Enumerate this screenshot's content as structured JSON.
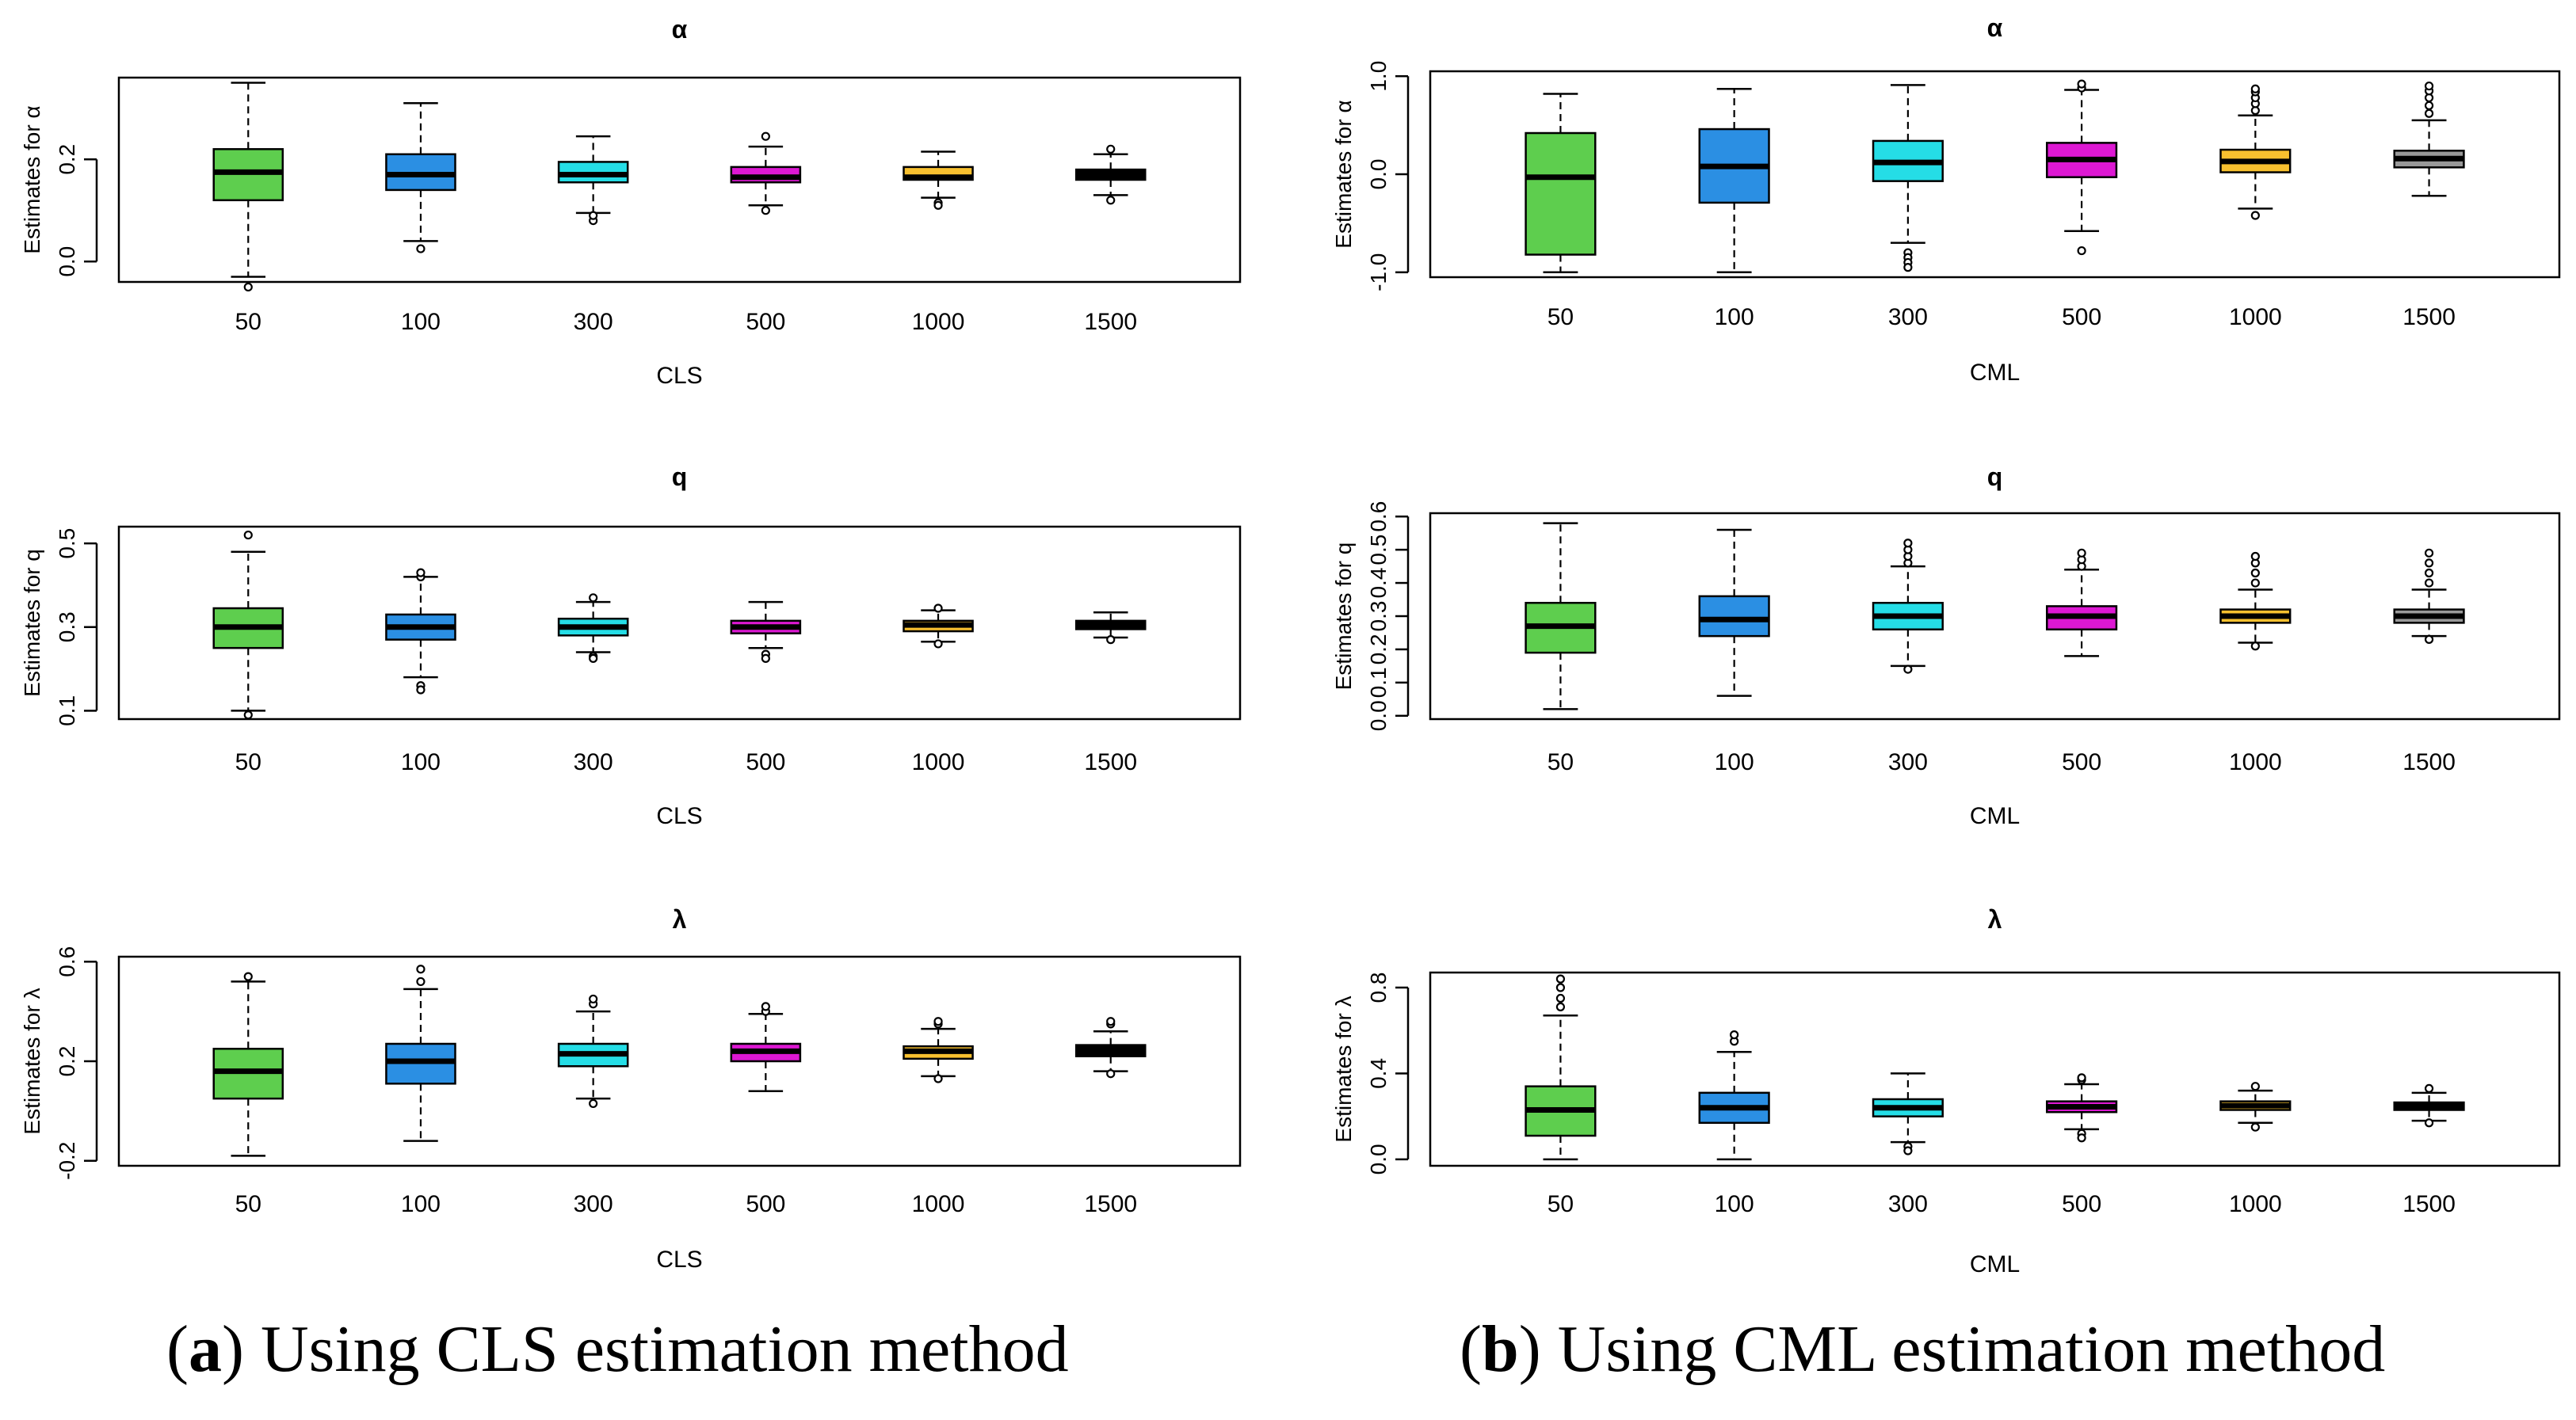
{
  "caption_a": {
    "letter": "a",
    "text": "Using CLS estimation method"
  },
  "caption_b": {
    "letter": "b",
    "text": "Using CML estimation method"
  },
  "palette": [
    "#5ece4e",
    "#2b8fe3",
    "#25dde6",
    "#dd18d3",
    "#f7c02f",
    "#999999"
  ],
  "chart_data": [
    {
      "type": "boxplot",
      "id": "cls-alpha",
      "title": "α",
      "xlabel": "CLS",
      "ylabel": "Estimates for α",
      "categories": [
        "50",
        "100",
        "300",
        "500",
        "1000",
        "1500"
      ],
      "ylim": [
        -0.04,
        0.36
      ],
      "yticks": [
        0.0,
        0.2
      ],
      "ytick_labels": [
        "0.0",
        "0.2"
      ],
      "colors": [
        "#5ece4e",
        "#2b8fe3",
        "#25dde6",
        "#dd18d3",
        "#f7c02f",
        "#000000"
      ],
      "boxes": [
        {
          "whisker_low": -0.03,
          "q1": 0.12,
          "median": 0.175,
          "q3": 0.22,
          "whisker_high": 0.35,
          "outliers": [
            -0.05
          ]
        },
        {
          "whisker_low": 0.04,
          "q1": 0.14,
          "median": 0.17,
          "q3": 0.21,
          "whisker_high": 0.31,
          "outliers": [
            0.025
          ]
        },
        {
          "whisker_low": 0.095,
          "q1": 0.155,
          "median": 0.17,
          "q3": 0.195,
          "whisker_high": 0.245,
          "outliers": [
            0.08,
            0.09
          ]
        },
        {
          "whisker_low": 0.11,
          "q1": 0.155,
          "median": 0.165,
          "q3": 0.185,
          "whisker_high": 0.225,
          "outliers": [
            0.1,
            0.245
          ]
        },
        {
          "whisker_low": 0.125,
          "q1": 0.16,
          "median": 0.165,
          "q3": 0.185,
          "whisker_high": 0.215,
          "outliers": [
            0.115,
            0.11
          ]
        },
        {
          "whisker_low": 0.13,
          "q1": 0.16,
          "median": 0.17,
          "q3": 0.18,
          "whisker_high": 0.21,
          "outliers": [
            0.12,
            0.22
          ]
        }
      ]
    },
    {
      "type": "boxplot",
      "id": "cml-alpha",
      "title": "α",
      "xlabel": "CML",
      "ylabel": "Estimates for α",
      "categories": [
        "50",
        "100",
        "300",
        "500",
        "1000",
        "1500"
      ],
      "ylim": [
        -1.05,
        1.05
      ],
      "yticks": [
        -1.0,
        0.0,
        1.0
      ],
      "ytick_labels": [
        "-1.0",
        "0.0",
        "1.0"
      ],
      "colors": [
        "#5ece4e",
        "#2b8fe3",
        "#25dde6",
        "#dd18d3",
        "#f7c02f",
        "#999999"
      ],
      "boxes": [
        {
          "whisker_low": -1.0,
          "q1": -0.82,
          "median": -0.03,
          "q3": 0.42,
          "whisker_high": 0.82,
          "outliers": []
        },
        {
          "whisker_low": -1.0,
          "q1": -0.29,
          "median": 0.08,
          "q3": 0.46,
          "whisker_high": 0.87,
          "outliers": []
        },
        {
          "whisker_low": -0.7,
          "q1": -0.07,
          "median": 0.12,
          "q3": 0.34,
          "whisker_high": 0.91,
          "outliers": [
            -0.8,
            -0.85,
            -0.9,
            -0.95
          ]
        },
        {
          "whisker_low": -0.58,
          "q1": -0.03,
          "median": 0.15,
          "q3": 0.32,
          "whisker_high": 0.86,
          "outliers": [
            -0.78,
            0.88,
            0.92
          ]
        },
        {
          "whisker_low": -0.35,
          "q1": 0.02,
          "median": 0.13,
          "q3": 0.25,
          "whisker_high": 0.6,
          "outliers": [
            -0.42,
            0.65,
            0.72,
            0.78,
            0.84,
            0.87
          ]
        },
        {
          "whisker_low": -0.22,
          "q1": 0.07,
          "median": 0.16,
          "q3": 0.24,
          "whisker_high": 0.55,
          "outliers": [
            0.62,
            0.7,
            0.78,
            0.85,
            0.9
          ]
        }
      ]
    },
    {
      "type": "boxplot",
      "id": "cls-q",
      "title": "q",
      "xlabel": "CLS",
      "ylabel": "Estimates for q",
      "categories": [
        "50",
        "100",
        "300",
        "500",
        "1000",
        "1500"
      ],
      "ylim": [
        0.08,
        0.54
      ],
      "yticks": [
        0.1,
        0.3,
        0.5
      ],
      "ytick_labels": [
        "0.1",
        "0.3",
        "0.5"
      ],
      "colors": [
        "#5ece4e",
        "#2b8fe3",
        "#25dde6",
        "#dd18d3",
        "#f7c02f",
        "#000000"
      ],
      "boxes": [
        {
          "whisker_low": 0.1,
          "q1": 0.25,
          "median": 0.3,
          "q3": 0.345,
          "whisker_high": 0.48,
          "outliers": [
            0.09,
            0.52
          ]
        },
        {
          "whisker_low": 0.18,
          "q1": 0.27,
          "median": 0.3,
          "q3": 0.33,
          "whisker_high": 0.42,
          "outliers": [
            0.16,
            0.15,
            0.42,
            0.43
          ]
        },
        {
          "whisker_low": 0.24,
          "q1": 0.28,
          "median": 0.3,
          "q3": 0.32,
          "whisker_high": 0.36,
          "outliers": [
            0.23,
            0.225,
            0.37
          ]
        },
        {
          "whisker_low": 0.25,
          "q1": 0.285,
          "median": 0.3,
          "q3": 0.315,
          "whisker_high": 0.36,
          "outliers": [
            0.235,
            0.225
          ]
        },
        {
          "whisker_low": 0.265,
          "q1": 0.29,
          "median": 0.305,
          "q3": 0.315,
          "whisker_high": 0.34,
          "outliers": [
            0.26,
            0.345
          ]
        },
        {
          "whisker_low": 0.275,
          "q1": 0.295,
          "median": 0.305,
          "q3": 0.315,
          "whisker_high": 0.335,
          "outliers": [
            0.27
          ]
        }
      ]
    },
    {
      "type": "boxplot",
      "id": "cml-q",
      "title": "q",
      "xlabel": "CML",
      "ylabel": "Estimates for q",
      "categories": [
        "50",
        "100",
        "300",
        "500",
        "1000",
        "1500"
      ],
      "ylim": [
        -0.01,
        0.61
      ],
      "yticks": [
        0.0,
        0.1,
        0.2,
        0.3,
        0.4,
        0.5,
        0.6
      ],
      "ytick_labels": [
        "0.0",
        "0.1",
        "0.2",
        "0.3",
        "0.4",
        "0.5",
        "0.6"
      ],
      "colors": [
        "#5ece4e",
        "#2b8fe3",
        "#25dde6",
        "#dd18d3",
        "#f7c02f",
        "#999999"
      ],
      "boxes": [
        {
          "whisker_low": 0.02,
          "q1": 0.19,
          "median": 0.27,
          "q3": 0.34,
          "whisker_high": 0.58,
          "outliers": []
        },
        {
          "whisker_low": 0.06,
          "q1": 0.24,
          "median": 0.29,
          "q3": 0.36,
          "whisker_high": 0.56,
          "outliers": []
        },
        {
          "whisker_low": 0.15,
          "q1": 0.26,
          "median": 0.3,
          "q3": 0.34,
          "whisker_high": 0.45,
          "outliers": [
            0.14,
            0.46,
            0.48,
            0.5,
            0.52
          ]
        },
        {
          "whisker_low": 0.18,
          "q1": 0.26,
          "median": 0.3,
          "q3": 0.33,
          "whisker_high": 0.44,
          "outliers": [
            0.45,
            0.47,
            0.49
          ]
        },
        {
          "whisker_low": 0.22,
          "q1": 0.28,
          "median": 0.3,
          "q3": 0.32,
          "whisker_high": 0.38,
          "outliers": [
            0.21,
            0.4,
            0.43,
            0.46,
            0.48
          ]
        },
        {
          "whisker_low": 0.24,
          "q1": 0.28,
          "median": 0.3,
          "q3": 0.32,
          "whisker_high": 0.38,
          "outliers": [
            0.23,
            0.4,
            0.43,
            0.46,
            0.49
          ]
        }
      ]
    },
    {
      "type": "boxplot",
      "id": "cls-lambda",
      "title": "λ",
      "xlabel": "CLS",
      "ylabel": "Estimates for λ",
      "categories": [
        "50",
        "100",
        "300",
        "500",
        "1000",
        "1500"
      ],
      "ylim": [
        -0.22,
        0.62
      ],
      "yticks": [
        -0.2,
        0.2,
        0.6
      ],
      "ytick_labels": [
        "-0.2",
        "0.2",
        "0.6"
      ],
      "colors": [
        "#5ece4e",
        "#2b8fe3",
        "#25dde6",
        "#dd18d3",
        "#f7c02f",
        "#000000"
      ],
      "boxes": [
        {
          "whisker_low": -0.18,
          "q1": 0.05,
          "median": 0.16,
          "q3": 0.25,
          "whisker_high": 0.52,
          "outliers": [
            0.54
          ]
        },
        {
          "whisker_low": -0.12,
          "q1": 0.11,
          "median": 0.2,
          "q3": 0.27,
          "whisker_high": 0.49,
          "outliers": [
            0.52,
            0.57
          ]
        },
        {
          "whisker_low": 0.05,
          "q1": 0.18,
          "median": 0.23,
          "q3": 0.27,
          "whisker_high": 0.4,
          "outliers": [
            0.03,
            0.43,
            0.45
          ]
        },
        {
          "whisker_low": 0.08,
          "q1": 0.2,
          "median": 0.24,
          "q3": 0.27,
          "whisker_high": 0.39,
          "outliers": [
            0.4,
            0.42
          ]
        },
        {
          "whisker_low": 0.14,
          "q1": 0.21,
          "median": 0.24,
          "q3": 0.26,
          "whisker_high": 0.33,
          "outliers": [
            0.13,
            0.35,
            0.36
          ]
        },
        {
          "whisker_low": 0.16,
          "q1": 0.22,
          "median": 0.245,
          "q3": 0.265,
          "whisker_high": 0.32,
          "outliers": [
            0.15,
            0.35,
            0.36
          ]
        }
      ]
    },
    {
      "type": "boxplot",
      "id": "cml-lambda",
      "title": "λ",
      "xlabel": "CML",
      "ylabel": "Estimates for λ",
      "categories": [
        "50",
        "100",
        "300",
        "500",
        "1000",
        "1500"
      ],
      "ylim": [
        -0.03,
        0.87
      ],
      "yticks": [
        0.0,
        0.4,
        0.8
      ],
      "ytick_labels": [
        "0.0",
        "0.4",
        "0.8"
      ],
      "colors": [
        "#5ece4e",
        "#2b8fe3",
        "#25dde6",
        "#dd18d3",
        "#f7c02f",
        "#000000"
      ],
      "boxes": [
        {
          "whisker_low": 0.0,
          "q1": 0.11,
          "median": 0.23,
          "q3": 0.34,
          "whisker_high": 0.67,
          "outliers": [
            0.71,
            0.75,
            0.8,
            0.84
          ]
        },
        {
          "whisker_low": 0.0,
          "q1": 0.17,
          "median": 0.24,
          "q3": 0.31,
          "whisker_high": 0.5,
          "outliers": [
            0.55,
            0.58
          ]
        },
        {
          "whisker_low": 0.08,
          "q1": 0.2,
          "median": 0.24,
          "q3": 0.28,
          "whisker_high": 0.4,
          "outliers": [
            0.06,
            0.04
          ]
        },
        {
          "whisker_low": 0.14,
          "q1": 0.22,
          "median": 0.245,
          "q3": 0.27,
          "whisker_high": 0.35,
          "outliers": [
            0.12,
            0.1,
            0.37,
            0.38
          ]
        },
        {
          "whisker_low": 0.17,
          "q1": 0.23,
          "median": 0.25,
          "q3": 0.27,
          "whisker_high": 0.32,
          "outliers": [
            0.15,
            0.34
          ]
        },
        {
          "whisker_low": 0.18,
          "q1": 0.23,
          "median": 0.25,
          "q3": 0.265,
          "whisker_high": 0.31,
          "outliers": [
            0.17,
            0.33
          ]
        }
      ]
    }
  ]
}
